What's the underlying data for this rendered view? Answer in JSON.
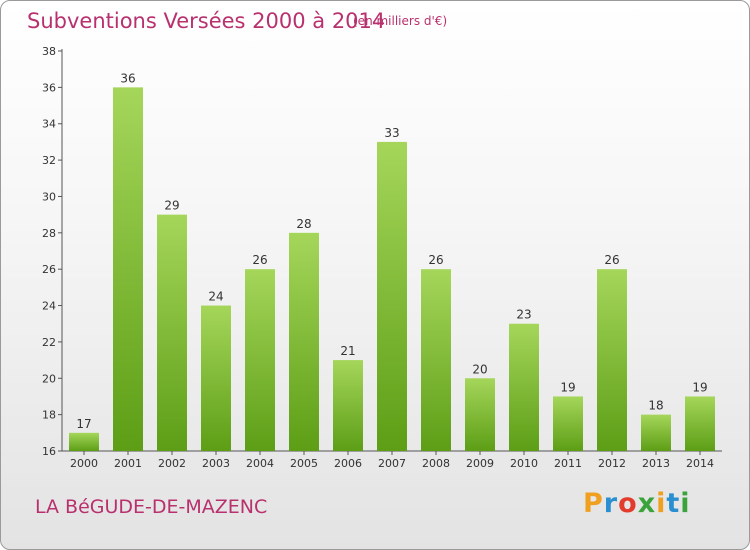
{
  "title": "Subventions Versées 2000 à 2014",
  "unit": "(en milliers d'€)",
  "commune": "LA BéGUDE-DE-MAZENC",
  "logo": {
    "letters": [
      "P",
      "r",
      "o",
      "x",
      "i",
      "t",
      "i"
    ],
    "colors": [
      "#f0a020",
      "#2a8fd0",
      "#e23c2c",
      "#3aa33a",
      "#f0a020",
      "#2a8fd0",
      "#3aa33a"
    ]
  },
  "colors": {
    "bar_light": "#a5d65a",
    "bar_dark": "#5d9e16",
    "text_accent": "#b8316e"
  },
  "chart_data": {
    "type": "bar",
    "title": "Subventions Versées 2000 à 2014",
    "categories": [
      "2000",
      "2001",
      "2002",
      "2003",
      "2004",
      "2005",
      "2006",
      "2007",
      "2008",
      "2009",
      "2010",
      "2011",
      "2012",
      "2013",
      "2014"
    ],
    "values": [
      17,
      36,
      29,
      24,
      26,
      28,
      21,
      33,
      26,
      20,
      23,
      19,
      26,
      18,
      19
    ],
    "ylim": [
      16,
      38
    ],
    "yticks": [
      16,
      18,
      20,
      22,
      24,
      26,
      28,
      30,
      32,
      34,
      36,
      38
    ],
    "grid": false,
    "legend": "none"
  }
}
